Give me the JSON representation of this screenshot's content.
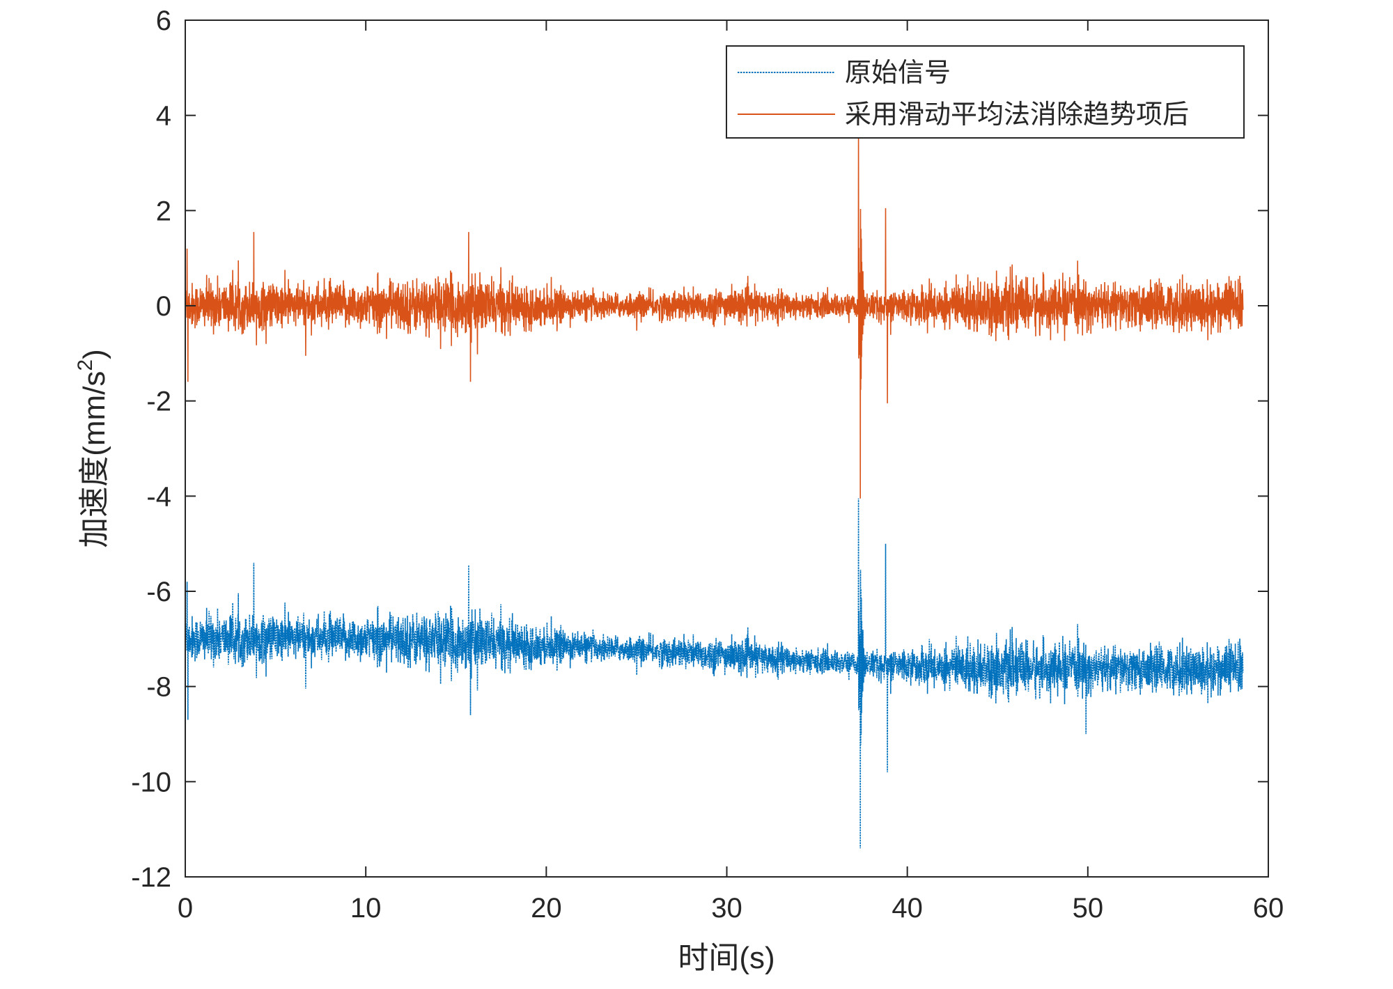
{
  "chart_data": {
    "type": "line",
    "xlabel": "时间(s)",
    "ylabel_prefix": "加速度(mm/s",
    "ylabel_sup": "2",
    "ylabel_suffix": ")",
    "xlim": [
      0,
      60
    ],
    "ylim": [
      -12,
      6
    ],
    "xticks": [
      0,
      10,
      20,
      30,
      40,
      50,
      60
    ],
    "yticks": [
      -12,
      -10,
      -8,
      -6,
      -4,
      -2,
      0,
      2,
      4,
      6
    ],
    "grid": false,
    "legend_position": "top-right",
    "duration": 58.6,
    "series": [
      {
        "name": "原始信号",
        "color": "#0072BD",
        "line_style": "dotted",
        "baseline_start": -7.0,
        "baseline_end": -7.65,
        "noise_amplitude": 0.6,
        "peaks": [
          {
            "x": 0.1,
            "y": -5.8
          },
          {
            "x": 0.15,
            "y": -8.7
          },
          {
            "x": 3.8,
            "y": -5.4
          },
          {
            "x": 15.7,
            "y": -5.45
          },
          {
            "x": 15.8,
            "y": -8.6
          },
          {
            "x": 37.3,
            "y": -4.05
          },
          {
            "x": 37.4,
            "y": -11.4
          },
          {
            "x": 38.8,
            "y": -5.0
          },
          {
            "x": 38.9,
            "y": -9.8
          },
          {
            "x": 49.9,
            "y": -9.0
          }
        ]
      },
      {
        "name": "采用滑动平均法消除趋势项后",
        "color": "#D95319",
        "line_style": "solid",
        "baseline_start": 0.0,
        "baseline_end": 0.0,
        "noise_amplitude": 0.6,
        "peaks": [
          {
            "x": 0.1,
            "y": 1.2
          },
          {
            "x": 0.15,
            "y": -1.6
          },
          {
            "x": 3.8,
            "y": 1.55
          },
          {
            "x": 15.7,
            "y": 1.55
          },
          {
            "x": 15.8,
            "y": -1.6
          },
          {
            "x": 37.3,
            "y": 3.7
          },
          {
            "x": 37.4,
            "y": -4.05
          },
          {
            "x": 38.8,
            "y": 2.05
          },
          {
            "x": 38.9,
            "y": -2.05
          }
        ]
      }
    ]
  }
}
